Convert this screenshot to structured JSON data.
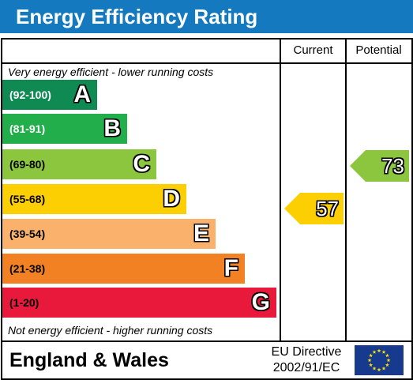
{
  "title": "Energy Efficiency Rating",
  "columns": {
    "current": "Current",
    "potential": "Potential"
  },
  "top_caption": "Very energy efficient - lower running costs",
  "bottom_caption": "Not energy efficient - higher running costs",
  "bands": [
    {
      "range": "(92-100)",
      "letter": "A",
      "color": "#0f8a52",
      "range_color": "#ffffff"
    },
    {
      "range": "(81-91)",
      "letter": "B",
      "color": "#21ae4b",
      "range_color": "#ffffff"
    },
    {
      "range": "(69-80)",
      "letter": "C",
      "color": "#8cc63e",
      "range_color": "#000000"
    },
    {
      "range": "(55-68)",
      "letter": "D",
      "color": "#fccf02",
      "range_color": "#000000"
    },
    {
      "range": "(39-54)",
      "letter": "E",
      "color": "#f9b16c",
      "range_color": "#000000"
    },
    {
      "range": "(21-38)",
      "letter": "F",
      "color": "#f18123",
      "range_color": "#000000"
    },
    {
      "range": "(1-20)",
      "letter": "G",
      "color": "#e8193b",
      "range_color": "#000000"
    }
  ],
  "current": {
    "value": "57",
    "color": "#fccf02"
  },
  "potential": {
    "value": "73",
    "color": "#8cc63e"
  },
  "footer": {
    "region": "England & Wales",
    "directive_line1": "EU Directive",
    "directive_line2": "2002/91/EC",
    "flag_icon": "eu-flag-icon"
  }
}
